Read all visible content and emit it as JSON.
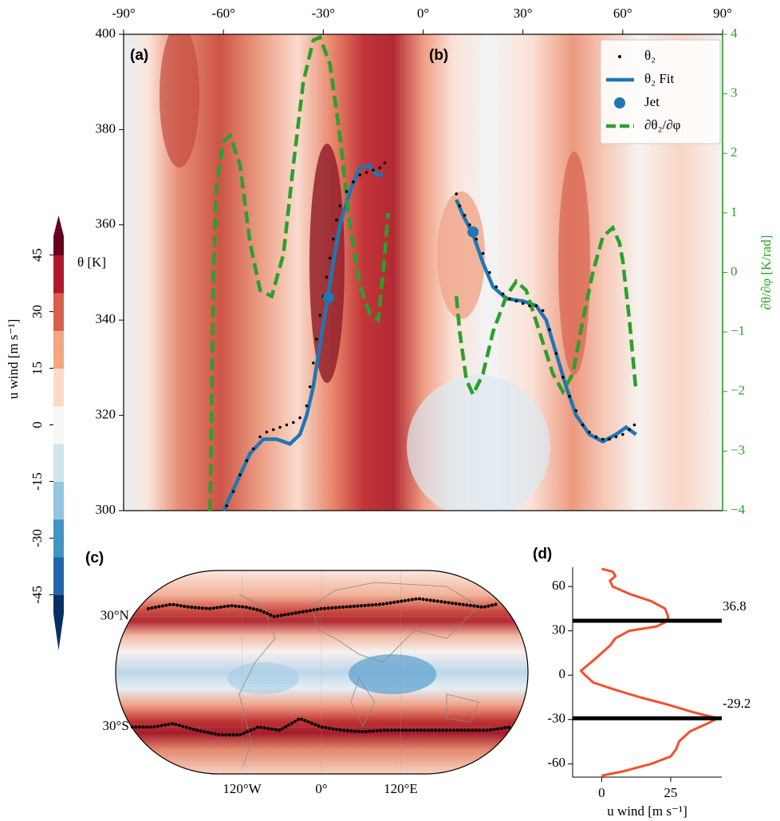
{
  "chart_data": [
    {
      "type": "line",
      "panel_labels": [
        "(a)",
        "(b)"
      ],
      "ylabel": "θ [K]",
      "y2label": "∂θ/∂φ [K/rad]",
      "xlim": [
        -90,
        90
      ],
      "xticks": [
        {
          "value": -90,
          "label": "-90°"
        },
        {
          "value": -60,
          "label": "-60°"
        },
        {
          "value": -30,
          "label": "-30°"
        },
        {
          "value": 0,
          "label": "0°"
        },
        {
          "value": 30,
          "label": "30°"
        },
        {
          "value": 60,
          "label": "60°"
        },
        {
          "value": 90,
          "label": "90°"
        }
      ],
      "ylim": [
        300,
        400
      ],
      "yticks": [
        300,
        320,
        340,
        360,
        380,
        400
      ],
      "y2lim": [
        -4,
        4
      ],
      "y2ticks": [
        {
          "value": -4,
          "label": "−4"
        },
        {
          "value": -3,
          "label": "−3"
        },
        {
          "value": -2,
          "label": "−2"
        },
        {
          "value": -1,
          "label": "−1"
        },
        0,
        1,
        2,
        3,
        4
      ],
      "legend": "upper right",
      "series": [
        {
          "name": "θ₂",
          "kind": "scatter",
          "color": "#000000",
          "x": [
            -59,
            -57,
            -55,
            -53,
            -51,
            -49,
            -47,
            -45,
            -43,
            -41,
            -39,
            -37,
            -35,
            -34,
            -33,
            -32,
            -31,
            -30,
            -29,
            -28,
            -27,
            -26,
            -25,
            -23,
            -21,
            -19,
            -17,
            -15,
            -13,
            -11.5,
            10,
            11,
            12.5,
            14,
            16,
            18,
            20,
            22,
            24,
            26,
            28,
            30,
            32,
            34,
            36,
            38,
            40,
            42,
            44,
            46,
            48,
            50,
            52,
            54,
            56,
            58,
            60,
            62,
            63.5
          ],
          "values": [
            301,
            304,
            307.5,
            310.5,
            313,
            315.5,
            316.5,
            317,
            317.5,
            318,
            318.5,
            319.5,
            322,
            326,
            331,
            336,
            341,
            345,
            349,
            353,
            357,
            361,
            364,
            367,
            369,
            370.5,
            371,
            371.5,
            372,
            373,
            366.5,
            364,
            362,
            360,
            357,
            354,
            350,
            347,
            345.5,
            344.5,
            344,
            343.5,
            343,
            343,
            342,
            338,
            333,
            328,
            324,
            321,
            318,
            316.5,
            315.5,
            315,
            315,
            315.5,
            316,
            317,
            318
          ]
        },
        {
          "name": "θ₂ Fit",
          "kind": "line",
          "color": "#1f77b4",
          "x": [
            -60,
            -56,
            -52,
            -48,
            -44,
            -40,
            -37,
            -35,
            -33,
            -31,
            -29,
            -27,
            -25,
            -22,
            -19,
            -16,
            -14,
            -12,
            null,
            10,
            12,
            15,
            18,
            21,
            25,
            30,
            34,
            37,
            40,
            43,
            46,
            50,
            54,
            58,
            61,
            64
          ],
          "values": [
            300,
            306,
            312,
            315,
            315,
            314,
            316,
            320,
            326,
            335,
            343,
            352,
            360,
            367,
            372,
            372.5,
            370.5,
            370.5,
            null,
            365.3,
            362,
            358,
            352,
            347,
            344.5,
            344,
            343,
            340,
            333,
            326,
            320,
            316,
            314.5,
            316,
            317.5,
            316
          ]
        },
        {
          "name": "Jet",
          "kind": "marker",
          "color": "#1f77b4",
          "x": [
            -28.4,
            15
          ],
          "values": [
            344.7,
            358.5
          ]
        },
        {
          "name": "∂θ₂/∂φ",
          "kind": "dashed",
          "color": "#2ca02c",
          "axis": "y2",
          "x": [
            -64,
            -63.5,
            -63,
            -62,
            -60,
            -58,
            -55,
            -52,
            -49,
            -45.5,
            -42,
            -39,
            -36,
            -33,
            -31,
            -28,
            -25,
            -22,
            -19,
            -16,
            -13.5,
            -12,
            -10.5,
            null,
            10,
            11,
            13,
            15,
            18,
            21,
            25,
            28,
            31,
            35,
            39,
            42,
            45,
            48,
            51,
            54,
            57,
            59,
            60,
            62,
            64
          ],
          "values": [
            -4,
            -2,
            0,
            1.5,
            2.2,
            2.3,
            1.8,
            0.5,
            -0.3,
            -0.4,
            0.3,
            1.8,
            3.2,
            3.9,
            3.95,
            3.5,
            2.3,
            0.8,
            -0.2,
            -0.7,
            -0.8,
            0,
            1.0,
            null,
            -0.4,
            -1,
            -1.8,
            -2.05,
            -1.7,
            -1,
            -0.4,
            -0.15,
            -0.3,
            -1,
            -1.7,
            -2.0,
            -1.7,
            -0.8,
            0,
            0.6,
            0.75,
            0.5,
            0.2,
            -0.8,
            -2.0
          ]
        }
      ],
      "colorbar": {
        "label": "u wind [m s⁻¹]",
        "lim": [
          -50,
          50
        ],
        "ticks": [
          -45,
          -30,
          -15,
          0,
          15,
          30,
          45
        ],
        "colormap": "RdBu_r"
      }
    },
    {
      "type": "map",
      "panel_label": "(c)",
      "xticks": [
        {
          "value": -120,
          "label": "120°W"
        },
        {
          "value": 0,
          "label": "0°"
        },
        {
          "value": 120,
          "label": "120°E"
        }
      ],
      "yticks": [
        {
          "value": 30,
          "label": "30°N"
        },
        {
          "value": -30,
          "label": "30°S"
        }
      ],
      "series": [
        {
          "color": "#000000",
          "x": [
            -170,
            -150,
            -130,
            -110,
            -90,
            -75,
            -60,
            -45,
            0,
            20,
            40,
            60,
            80,
            100,
            120,
            140,
            160,
            175
          ],
          "values": [
            35,
            38,
            36,
            35,
            37,
            36,
            34,
            30,
            35,
            36,
            37,
            38,
            40,
            42,
            40,
            38,
            36,
            38
          ]
        },
        {
          "color": "#000000",
          "x": [
            -180,
            -160,
            -140,
            -120,
            -100,
            -80,
            -60,
            -40,
            -20,
            0,
            20,
            40,
            60,
            80,
            100,
            120,
            140,
            160,
            180
          ],
          "values": [
            -30,
            -30,
            -28,
            -32,
            -35,
            -35,
            -30,
            -32,
            -25,
            -30,
            -32,
            -33,
            -32,
            -32,
            -32,
            -32,
            -32,
            -32,
            -30
          ]
        }
      ]
    },
    {
      "type": "profile",
      "panel_label": "(d)",
      "xlabel": "u wind [m s⁻¹]",
      "xlim": [
        -10.5,
        43.5
      ],
      "xticks": [
        0,
        25
      ],
      "ylim": [
        -69,
        73
      ],
      "yticks": [
        -60,
        -30,
        0,
        30,
        60
      ],
      "series": [
        {
          "color": "#f4502c",
          "y": [
            72,
            70,
            67,
            64,
            60,
            55,
            50,
            45,
            40,
            36.8,
            33,
            30,
            25,
            20,
            10,
            3,
            0,
            -5,
            -10,
            -15,
            -20,
            -25,
            -29.2,
            -33,
            -38,
            -45,
            -50,
            -55,
            -60,
            -65,
            -68
          ],
          "values": [
            0,
            4,
            5,
            3,
            4,
            10,
            18,
            23,
            24,
            24,
            20,
            10,
            5,
            3,
            -3,
            -7.5,
            -6,
            -3,
            5,
            14,
            24,
            33,
            42,
            38,
            32,
            28,
            27,
            25,
            18,
            8,
            0
          ]
        }
      ],
      "jets": {
        "color": "#000000",
        "values": [
          36.8,
          -29.2
        ]
      }
    }
  ]
}
